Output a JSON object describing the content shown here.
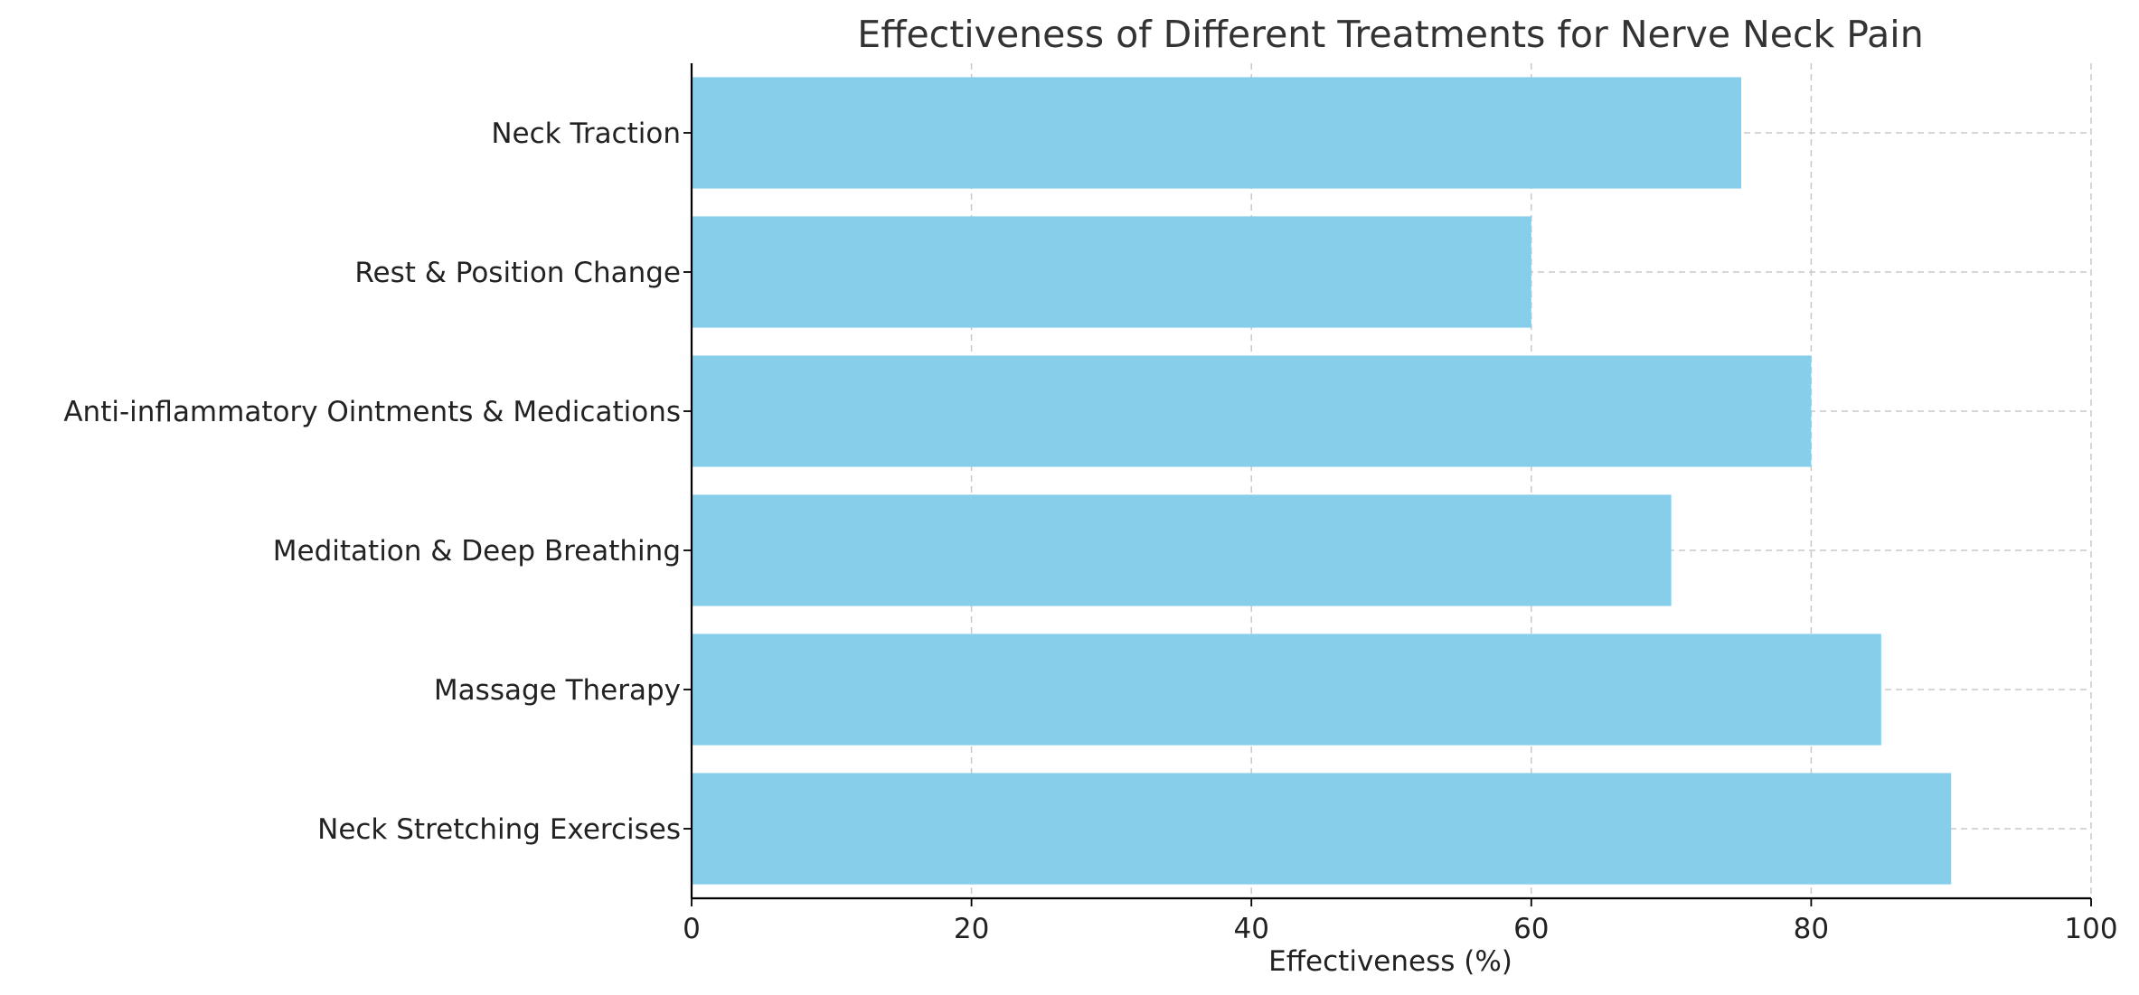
{
  "chart_data": {
    "type": "bar",
    "orientation": "horizontal",
    "title": "Effectiveness of Different Treatments for Nerve Neck Pain",
    "xlabel": "Effectiveness (%)",
    "ylabel": "",
    "categories": [
      "Neck Stretching Exercises",
      "Massage Therapy",
      "Meditation & Deep Breathing",
      "Anti-inflammatory Ointments & Medications",
      "Rest & Position Change",
      "Neck Traction"
    ],
    "values": [
      90,
      85,
      70,
      80,
      60,
      75
    ],
    "xlim": [
      0,
      100
    ],
    "xticks": [
      0,
      20,
      40,
      60,
      80,
      100
    ],
    "xtick_labels": [
      "0",
      "20",
      "40",
      "60",
      "80",
      "100"
    ],
    "grid": true,
    "bar_color": "#87CEEB"
  }
}
